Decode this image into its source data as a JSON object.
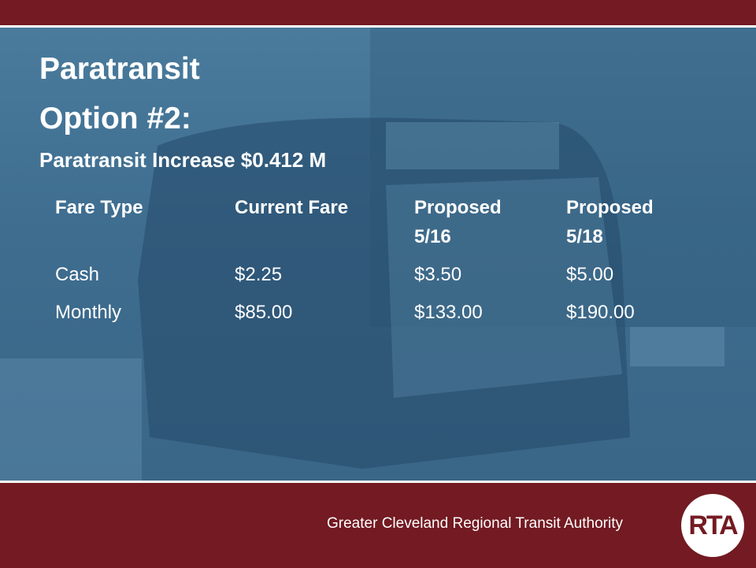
{
  "slide": {
    "title_lines": [
      "Paratransit",
      "Option #2:"
    ],
    "subtitle": "Paratransit Increase $0.412 M",
    "table": {
      "header": [
        "Fare Type",
        "Current Fare",
        "Proposed 5/16",
        "Proposed 5/18"
      ],
      "rows": [
        [
          "Cash",
          "$2.25",
          "$3.50",
          "$5.00"
        ],
        [
          "Monthly",
          "$85.00",
          "$133.00",
          "$190.00"
        ]
      ]
    },
    "footer": {
      "organization": "Greater Cleveland Regional Transit Authority",
      "logo": "RTA"
    }
  }
}
